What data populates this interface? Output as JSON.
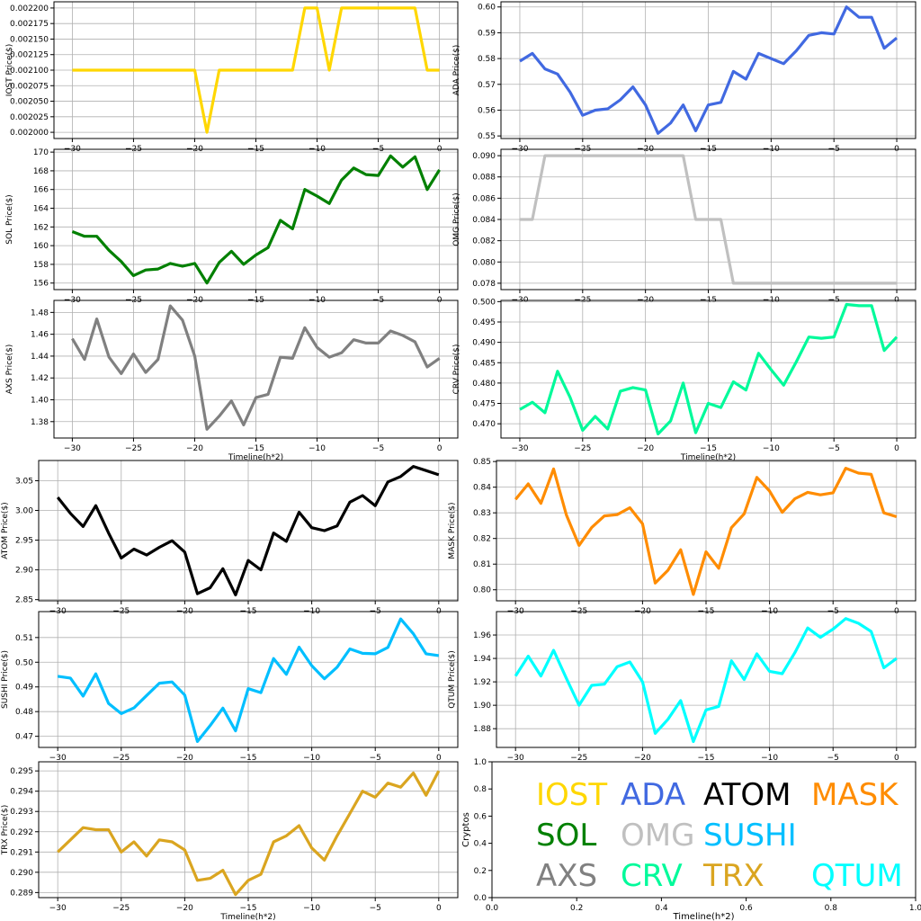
{
  "figure": {
    "legend_panel": {
      "ylabel": "Cryptos",
      "xlabel": "Timeline(h*2)",
      "x_ticks": [
        "0.0",
        "0.2",
        "0.4",
        "0.6",
        "0.8",
        "1.0"
      ],
      "y_ticks": [
        "0.0",
        "0.2",
        "0.4",
        "0.6",
        "0.8",
        "1.0"
      ],
      "entries": [
        {
          "label": "IOST",
          "color": "#FFD700"
        },
        {
          "label": "ADA",
          "color": "#4169E1"
        },
        {
          "label": "ATOM",
          "color": "#000000"
        },
        {
          "label": "MASK",
          "color": "#FF8C00"
        },
        {
          "label": "SOL",
          "color": "#008000"
        },
        {
          "label": "OMG",
          "color": "#C0C0C0"
        },
        {
          "label": "SUSHI",
          "color": "#00BFFF"
        },
        {
          "label": "AXS",
          "color": "#808080"
        },
        {
          "label": "CRV",
          "color": "#00FA9A"
        },
        {
          "label": "TRX",
          "color": "#DAA520"
        },
        {
          "label": "QTUM",
          "color": "#00FFFF"
        }
      ]
    }
  },
  "chart_data": [
    {
      "type": "line",
      "name": "IOST",
      "color": "#FFD700",
      "ylabel": "IOST Price($)",
      "xlabel": "",
      "x": [
        -30,
        -29,
        -28,
        -27,
        -26,
        -25,
        -24,
        -23,
        -22,
        -21,
        -20,
        -19,
        -18,
        -17,
        -16,
        -15,
        -14,
        -13,
        -12,
        -11,
        -10,
        -9,
        -8,
        -7,
        -6,
        -5,
        -4,
        -3,
        -2,
        -1,
        0
      ],
      "values": [
        0.0021,
        0.0021,
        0.0021,
        0.0021,
        0.0021,
        0.0021,
        0.0021,
        0.0021,
        0.0021,
        0.0021,
        0.0021,
        0.002,
        0.0021,
        0.0021,
        0.0021,
        0.0021,
        0.0021,
        0.0021,
        0.0021,
        0.0022,
        0.0022,
        0.0021,
        0.0022,
        0.0022,
        0.0022,
        0.0022,
        0.0022,
        0.0022,
        0.0022,
        0.0021,
        0.0021
      ],
      "xlim": [
        -31.5,
        1.5
      ],
      "ylim": [
        0.00199,
        0.00221
      ],
      "x_ticks": [
        -30,
        -25,
        -20,
        -15,
        -10,
        -5,
        0
      ],
      "y_ticks": [
        0.002,
        0.002025,
        0.00205,
        0.002075,
        0.0021,
        0.002125,
        0.00215,
        0.002175,
        0.0022
      ],
      "y_tick_labels": [
        "0.002000",
        "0.002025",
        "0.002050",
        "0.002075",
        "0.002100",
        "0.002125",
        "0.002150",
        "0.002175",
        "0.002200"
      ],
      "grid": true
    },
    {
      "type": "line",
      "name": "ADA",
      "color": "#4169E1",
      "ylabel": "ADA Price($)",
      "xlabel": "",
      "x": [
        -30,
        -29,
        -28,
        -27,
        -26,
        -25,
        -24,
        -23,
        -22,
        -21,
        -20,
        -19,
        -18,
        -17,
        -16,
        -15,
        -14,
        -13,
        -12,
        -11,
        -10,
        -9,
        -8,
        -7,
        -6,
        -5,
        -4,
        -3,
        -2,
        -1,
        0
      ],
      "values": [
        0.579,
        0.582,
        0.576,
        0.574,
        0.567,
        0.558,
        0.56,
        0.5605,
        0.564,
        0.569,
        0.562,
        0.551,
        0.555,
        0.562,
        0.552,
        0.562,
        0.563,
        0.575,
        0.572,
        0.582,
        0.58,
        0.578,
        0.583,
        0.589,
        0.59,
        0.5895,
        0.6,
        0.596,
        0.596,
        0.584,
        0.588
      ],
      "xlim": [
        -31.5,
        1.5
      ],
      "ylim": [
        0.549,
        0.602
      ],
      "x_ticks": [
        -30,
        -25,
        -20,
        -15,
        -10,
        -5,
        0
      ],
      "y_ticks": [
        0.55,
        0.56,
        0.57,
        0.58,
        0.59,
        0.6
      ],
      "y_tick_labels": [
        "0.55",
        "0.56",
        "0.57",
        "0.58",
        "0.59",
        "0.60"
      ],
      "grid": true
    },
    {
      "type": "line",
      "name": "SOL",
      "color": "#008000",
      "ylabel": "SOL Price($)",
      "xlabel": "",
      "x": [
        -30,
        -29,
        -28,
        -27,
        -26,
        -25,
        -24,
        -23,
        -22,
        -21,
        -20,
        -19,
        -18,
        -17,
        -16,
        -15,
        -14,
        -13,
        -12,
        -11,
        -10,
        -9,
        -8,
        -7,
        -6,
        -5,
        -4,
        -3,
        -2,
        -1,
        0
      ],
      "values": [
        161.5,
        161.0,
        161.0,
        159.5,
        158.3,
        156.8,
        157.4,
        157.5,
        158.1,
        157.8,
        158.1,
        156.0,
        158.2,
        159.4,
        158.0,
        159.0,
        159.8,
        162.7,
        161.8,
        166.0,
        165.3,
        164.5,
        167.0,
        168.3,
        167.6,
        167.5,
        169.6,
        168.4,
        169.5,
        166.0,
        168.1
      ],
      "xlim": [
        -31.5,
        1.5
      ],
      "ylim": [
        155.3,
        170.3
      ],
      "x_ticks": [
        -30,
        -25,
        -20,
        -15,
        -10,
        -5,
        0
      ],
      "y_ticks": [
        156,
        158,
        160,
        162,
        164,
        166,
        168,
        170
      ],
      "y_tick_labels": [
        "156",
        "158",
        "160",
        "162",
        "164",
        "166",
        "168",
        "170"
      ],
      "grid": true
    },
    {
      "type": "line",
      "name": "OMG",
      "color": "#C0C0C0",
      "ylabel": "OMG Price($)",
      "xlabel": "",
      "x": [
        -30,
        -29,
        -28,
        -27,
        -26,
        -25,
        -24,
        -23,
        -22,
        -21,
        -20,
        -19,
        -18,
        -17,
        -16,
        -15,
        -14,
        -13,
        -12,
        -11,
        -10,
        -9,
        -8,
        -7,
        -6,
        -5,
        -4,
        -3,
        -2,
        -1,
        0
      ],
      "values": [
        0.084,
        0.084,
        0.09,
        0.09,
        0.09,
        0.09,
        0.09,
        0.09,
        0.09,
        0.09,
        0.09,
        0.09,
        0.09,
        0.09,
        0.084,
        0.084,
        0.084,
        0.078,
        0.078,
        0.078,
        0.078,
        0.078,
        0.078,
        0.078,
        0.078,
        0.078,
        0.078,
        0.078,
        0.078,
        0.078,
        0.078
      ],
      "xlim": [
        -31.5,
        1.5
      ],
      "ylim": [
        0.0774,
        0.0906
      ],
      "x_ticks": [
        -30,
        -25,
        -20,
        -15,
        -10,
        -5,
        0
      ],
      "y_ticks": [
        0.078,
        0.08,
        0.082,
        0.084,
        0.086,
        0.088,
        0.09
      ],
      "y_tick_labels": [
        "0.078",
        "0.080",
        "0.082",
        "0.084",
        "0.086",
        "0.088",
        "0.090"
      ],
      "grid": true
    },
    {
      "type": "line",
      "name": "AXS",
      "color": "#808080",
      "ylabel": "AXS Price($)",
      "xlabel": "Timeline(h*2)",
      "x": [
        -30,
        -29,
        -28,
        -27,
        -26,
        -25,
        -24,
        -23,
        -22,
        -21,
        -20,
        -19,
        -18,
        -17,
        -16,
        -15,
        -14,
        -13,
        -12,
        -11,
        -10,
        -9,
        -8,
        -7,
        -6,
        -5,
        -4,
        -3,
        -2,
        -1,
        0
      ],
      "values": [
        1.456,
        1.437,
        1.474,
        1.439,
        1.424,
        1.442,
        1.425,
        1.437,
        1.486,
        1.473,
        1.44,
        1.373,
        1.385,
        1.399,
        1.377,
        1.402,
        1.405,
        1.439,
        1.438,
        1.466,
        1.448,
        1.439,
        1.443,
        1.455,
        1.452,
        1.452,
        1.463,
        1.459,
        1.453,
        1.43,
        1.438
      ],
      "xlim": [
        -31.5,
        1.5
      ],
      "ylim": [
        1.365,
        1.491
      ],
      "x_ticks": [
        -30,
        -25,
        -20,
        -15,
        -10,
        -5,
        0
      ],
      "y_ticks": [
        1.38,
        1.4,
        1.42,
        1.44,
        1.46,
        1.48
      ],
      "y_tick_labels": [
        "1.38",
        "1.40",
        "1.42",
        "1.44",
        "1.46",
        "1.48"
      ],
      "grid": true
    },
    {
      "type": "line",
      "name": "CRV",
      "color": "#00FA9A",
      "ylabel": "CRV Price($)",
      "xlabel": "Timeline(h*2)",
      "x": [
        -30,
        -29,
        -28,
        -27,
        -26,
        -25,
        -24,
        -23,
        -22,
        -21,
        -20,
        -19,
        -18,
        -17,
        -16,
        -15,
        -14,
        -13,
        -12,
        -11,
        -10,
        -9,
        -8,
        -7,
        -6,
        -5,
        -4,
        -3,
        -2,
        -1,
        0
      ],
      "values": [
        0.4735,
        0.4753,
        0.4727,
        0.4829,
        0.4765,
        0.4684,
        0.4718,
        0.4687,
        0.478,
        0.4789,
        0.4783,
        0.4675,
        0.4707,
        0.48,
        0.4678,
        0.475,
        0.474,
        0.4803,
        0.4783,
        0.4873,
        0.4833,
        0.4795,
        0.4852,
        0.4913,
        0.491,
        0.4913,
        0.4993,
        0.499,
        0.499,
        0.488,
        0.4913
      ],
      "xlim": [
        -31.5,
        1.5
      ],
      "ylim": [
        0.4665,
        0.5003
      ],
      "x_ticks": [
        -30,
        -25,
        -20,
        -15,
        -10,
        -5,
        0
      ],
      "y_ticks": [
        0.47,
        0.475,
        0.48,
        0.485,
        0.49,
        0.495,
        0.5
      ],
      "y_tick_labels": [
        "0.470",
        "0.475",
        "0.480",
        "0.485",
        "0.490",
        "0.495",
        "0.500"
      ],
      "grid": true
    },
    {
      "type": "line",
      "name": "ATOM",
      "color": "#000000",
      "ylabel": "ATOM  Price($)",
      "xlabel": "",
      "x": [
        -30,
        -29,
        -28,
        -27,
        -26,
        -25,
        -24,
        -23,
        -22,
        -21,
        -20,
        -19,
        -18,
        -17,
        -16,
        -15,
        -14,
        -13,
        -12,
        -11,
        -10,
        -9,
        -8,
        -7,
        -6,
        -5,
        -4,
        -3,
        -2,
        -1,
        0
      ],
      "values": [
        3.022,
        2.995,
        2.973,
        3.008,
        2.962,
        2.92,
        2.935,
        2.925,
        2.938,
        2.949,
        2.93,
        2.86,
        2.87,
        2.902,
        2.858,
        2.916,
        2.9,
        2.962,
        2.948,
        2.997,
        2.971,
        2.966,
        2.974,
        3.014,
        3.025,
        3.008,
        3.048,
        3.057,
        3.074,
        3.067,
        3.06
      ],
      "xlim": [
        -31.5,
        1.5
      ],
      "ylim": [
        2.848,
        3.084
      ],
      "x_ticks": [
        -30,
        -25,
        -20,
        -15,
        -10,
        -5,
        0
      ],
      "y_ticks": [
        2.85,
        2.9,
        2.95,
        3.0,
        3.05
      ],
      "y_tick_labels": [
        "2.85",
        "2.90",
        "2.95",
        "3.00",
        "3.05"
      ],
      "grid": true
    },
    {
      "type": "line",
      "name": "MASK",
      "color": "#FF8C00",
      "ylabel": "MASK Price($)",
      "xlabel": "",
      "x": [
        -30,
        -29,
        -28,
        -27,
        -26,
        -25,
        -24,
        -23,
        -22,
        -21,
        -20,
        -19,
        -18,
        -17,
        -16,
        -15,
        -14,
        -13,
        -12,
        -11,
        -10,
        -9,
        -8,
        -7,
        -6,
        -5,
        -4,
        -3,
        -2,
        -1,
        0
      ],
      "values": [
        0.8352,
        0.8413,
        0.8337,
        0.8471,
        0.8292,
        0.8173,
        0.8243,
        0.8288,
        0.8293,
        0.832,
        0.8257,
        0.8026,
        0.8076,
        0.8156,
        0.7982,
        0.8148,
        0.8084,
        0.8242,
        0.8296,
        0.8438,
        0.8385,
        0.8302,
        0.8355,
        0.838,
        0.837,
        0.8378,
        0.8474,
        0.8455,
        0.845,
        0.83,
        0.8285
      ],
      "xlim": [
        -31.5,
        1.5
      ],
      "ylim": [
        0.7957,
        0.8504
      ],
      "x_ticks": [
        -30,
        -25,
        -20,
        -15,
        -10,
        -5,
        0
      ],
      "y_ticks": [
        0.8,
        0.81,
        0.82,
        0.83,
        0.84,
        0.85
      ],
      "y_tick_labels": [
        "0.80",
        "0.81",
        "0.82",
        "0.83",
        "0.84",
        "0.85"
      ],
      "grid": true
    },
    {
      "type": "line",
      "name": "SUSHI",
      "color": "#00BFFF",
      "ylabel": "SUSHI  Price($)",
      "xlabel": "",
      "x": [
        -30,
        -29,
        -28,
        -27,
        -26,
        -25,
        -24,
        -23,
        -22,
        -21,
        -20,
        -19,
        -18,
        -17,
        -16,
        -15,
        -14,
        -13,
        -12,
        -11,
        -10,
        -9,
        -8,
        -7,
        -6,
        -5,
        -4,
        -3,
        -2,
        -1,
        0
      ],
      "values": [
        0.4943,
        0.4936,
        0.4863,
        0.4953,
        0.4833,
        0.4792,
        0.4815,
        0.4865,
        0.4915,
        0.492,
        0.4867,
        0.4679,
        0.4743,
        0.4814,
        0.4722,
        0.4893,
        0.4877,
        0.5015,
        0.4951,
        0.5061,
        0.4986,
        0.4933,
        0.498,
        0.5054,
        0.5036,
        0.5034,
        0.506,
        0.5175,
        0.5115,
        0.5034,
        0.5027
      ],
      "xlim": [
        -31.5,
        1.5
      ],
      "ylim": [
        0.4655,
        0.5205
      ],
      "x_ticks": [
        -30,
        -25,
        -20,
        -15,
        -10,
        -5,
        0
      ],
      "y_ticks": [
        0.47,
        0.48,
        0.49,
        0.5,
        0.51
      ],
      "y_tick_labels": [
        "0.47",
        "0.48",
        "0.49",
        "0.50",
        "0.51"
      ],
      "grid": true
    },
    {
      "type": "line",
      "name": "QTUM",
      "color": "#00FFFF",
      "ylabel": "QTUM Price($)",
      "xlabel": "",
      "x": [
        -30,
        -29,
        -28,
        -27,
        -26,
        -25,
        -24,
        -23,
        -22,
        -21,
        -20,
        -19,
        -18,
        -17,
        -16,
        -15,
        -14,
        -13,
        -12,
        -11,
        -10,
        -9,
        -8,
        -7,
        -6,
        -5,
        -4,
        -3,
        -2,
        -1,
        0
      ],
      "values": [
        1.925,
        1.942,
        1.925,
        1.947,
        1.923,
        1.9,
        1.917,
        1.918,
        1.933,
        1.937,
        1.92,
        1.876,
        1.888,
        1.904,
        1.869,
        1.896,
        1.899,
        1.938,
        1.922,
        1.944,
        1.929,
        1.927,
        1.945,
        1.966,
        1.958,
        1.965,
        1.974,
        1.97,
        1.963,
        1.932,
        1.94
      ],
      "xlim": [
        -31.5,
        1.5
      ],
      "ylim": [
        1.864,
        1.98
      ],
      "x_ticks": [
        -30,
        -25,
        -20,
        -15,
        -10,
        -5,
        0
      ],
      "y_ticks": [
        1.88,
        1.9,
        1.92,
        1.94,
        1.96
      ],
      "y_tick_labels": [
        "1.88",
        "1.90",
        "1.92",
        "1.94",
        "1.96"
      ],
      "grid": true
    },
    {
      "type": "line",
      "name": "TRX",
      "color": "#DAA520",
      "ylabel": "TRX Price($)",
      "xlabel": "Timeline(h*2)",
      "x": [
        -30,
        -29,
        -28,
        -27,
        -26,
        -25,
        -24,
        -23,
        -22,
        -21,
        -20,
        -19,
        -18,
        -17,
        -16,
        -15,
        -14,
        -13,
        -12,
        -11,
        -10,
        -9,
        -8,
        -7,
        -6,
        -5,
        -4,
        -3,
        -2,
        -1,
        0
      ],
      "values": [
        0.291,
        0.2916,
        0.2922,
        0.2921,
        0.2921,
        0.291,
        0.2915,
        0.2908,
        0.2916,
        0.2915,
        0.2911,
        0.2896,
        0.2897,
        0.2901,
        0.2889,
        0.2896,
        0.2899,
        0.2915,
        0.2918,
        0.2923,
        0.2912,
        0.2906,
        0.2918,
        0.2929,
        0.294,
        0.2937,
        0.2944,
        0.2942,
        0.2949,
        0.2938,
        0.295
      ],
      "xlim": [
        -31.5,
        1.5
      ],
      "ylim": [
        0.28875,
        0.29545
      ],
      "x_ticks": [
        -30,
        -25,
        -20,
        -15,
        -10,
        -5,
        0
      ],
      "y_ticks": [
        0.289,
        0.29,
        0.291,
        0.292,
        0.293,
        0.294,
        0.295
      ],
      "y_tick_labels": [
        "0.289",
        "0.290",
        "0.291",
        "0.292",
        "0.293",
        "0.294",
        "0.295"
      ],
      "grid": true
    }
  ]
}
